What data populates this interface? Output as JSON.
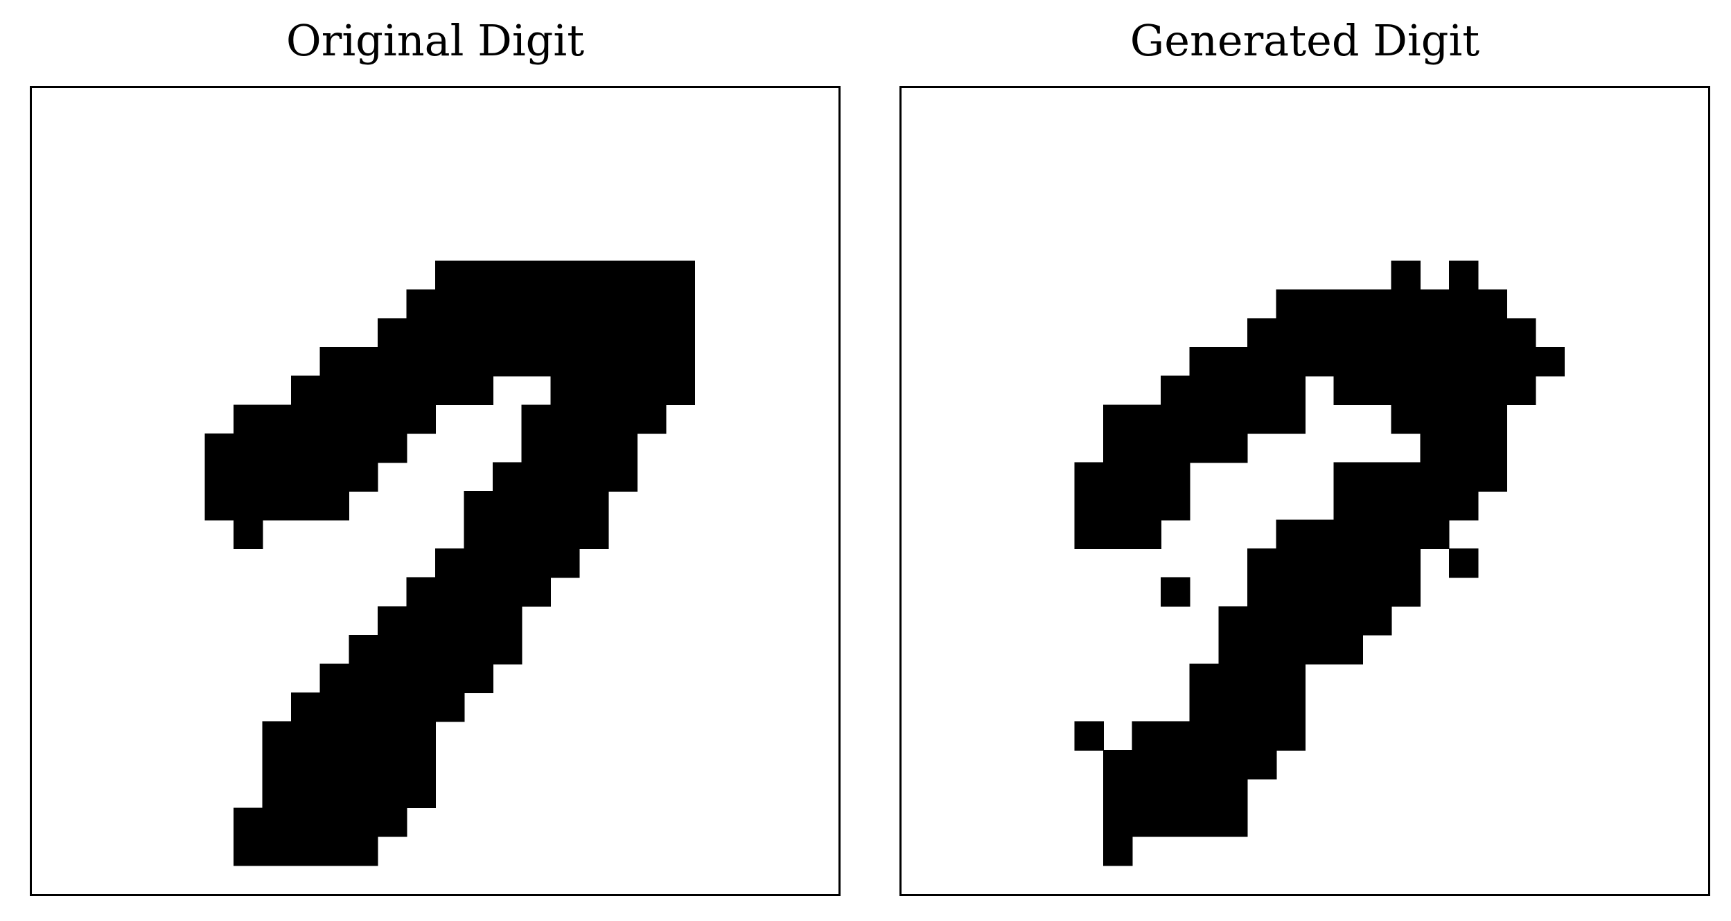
{
  "panels": [
    {
      "title": "Original Digit",
      "grid_size": 28,
      "fill_color": "#000000",
      "pixels": [
        [
          6,
          14
        ],
        [
          6,
          15
        ],
        [
          6,
          16
        ],
        [
          6,
          17
        ],
        [
          6,
          18
        ],
        [
          6,
          19
        ],
        [
          6,
          20
        ],
        [
          6,
          21
        ],
        [
          6,
          22
        ],
        [
          7,
          13
        ],
        [
          7,
          14
        ],
        [
          7,
          15
        ],
        [
          7,
          16
        ],
        [
          7,
          17
        ],
        [
          7,
          18
        ],
        [
          7,
          19
        ],
        [
          7,
          20
        ],
        [
          7,
          21
        ],
        [
          7,
          22
        ],
        [
          8,
          12
        ],
        [
          8,
          13
        ],
        [
          8,
          14
        ],
        [
          8,
          15
        ],
        [
          8,
          16
        ],
        [
          8,
          17
        ],
        [
          8,
          18
        ],
        [
          8,
          19
        ],
        [
          8,
          20
        ],
        [
          8,
          21
        ],
        [
          8,
          22
        ],
        [
          9,
          10
        ],
        [
          9,
          11
        ],
        [
          9,
          12
        ],
        [
          9,
          13
        ],
        [
          9,
          14
        ],
        [
          9,
          15
        ],
        [
          9,
          16
        ],
        [
          9,
          17
        ],
        [
          9,
          18
        ],
        [
          9,
          19
        ],
        [
          9,
          20
        ],
        [
          9,
          21
        ],
        [
          9,
          22
        ],
        [
          10,
          9
        ],
        [
          10,
          10
        ],
        [
          10,
          11
        ],
        [
          10,
          12
        ],
        [
          10,
          13
        ],
        [
          10,
          14
        ],
        [
          10,
          15
        ],
        [
          10,
          18
        ],
        [
          10,
          19
        ],
        [
          10,
          20
        ],
        [
          10,
          21
        ],
        [
          10,
          22
        ],
        [
          11,
          7
        ],
        [
          11,
          8
        ],
        [
          11,
          9
        ],
        [
          11,
          10
        ],
        [
          11,
          11
        ],
        [
          11,
          12
        ],
        [
          11,
          13
        ],
        [
          11,
          17
        ],
        [
          11,
          18
        ],
        [
          11,
          19
        ],
        [
          11,
          20
        ],
        [
          11,
          21
        ],
        [
          12,
          6
        ],
        [
          12,
          7
        ],
        [
          12,
          8
        ],
        [
          12,
          9
        ],
        [
          12,
          10
        ],
        [
          12,
          11
        ],
        [
          12,
          12
        ],
        [
          12,
          17
        ],
        [
          12,
          18
        ],
        [
          12,
          19
        ],
        [
          12,
          20
        ],
        [
          13,
          6
        ],
        [
          13,
          7
        ],
        [
          13,
          8
        ],
        [
          13,
          9
        ],
        [
          13,
          10
        ],
        [
          13,
          11
        ],
        [
          13,
          16
        ],
        [
          13,
          17
        ],
        [
          13,
          18
        ],
        [
          13,
          19
        ],
        [
          13,
          20
        ],
        [
          14,
          6
        ],
        [
          14,
          7
        ],
        [
          14,
          8
        ],
        [
          14,
          9
        ],
        [
          14,
          10
        ],
        [
          14,
          15
        ],
        [
          14,
          16
        ],
        [
          14,
          17
        ],
        [
          14,
          18
        ],
        [
          14,
          19
        ],
        [
          15,
          7
        ],
        [
          15,
          15
        ],
        [
          15,
          16
        ],
        [
          15,
          17
        ],
        [
          15,
          18
        ],
        [
          15,
          19
        ],
        [
          16,
          14
        ],
        [
          16,
          15
        ],
        [
          16,
          16
        ],
        [
          16,
          17
        ],
        [
          16,
          18
        ],
        [
          17,
          13
        ],
        [
          17,
          14
        ],
        [
          17,
          15
        ],
        [
          17,
          16
        ],
        [
          17,
          17
        ],
        [
          18,
          12
        ],
        [
          18,
          13
        ],
        [
          18,
          14
        ],
        [
          18,
          15
        ],
        [
          18,
          16
        ],
        [
          19,
          11
        ],
        [
          19,
          12
        ],
        [
          19,
          13
        ],
        [
          19,
          14
        ],
        [
          19,
          15
        ],
        [
          19,
          16
        ],
        [
          20,
          10
        ],
        [
          20,
          11
        ],
        [
          20,
          12
        ],
        [
          20,
          13
        ],
        [
          20,
          14
        ],
        [
          20,
          15
        ],
        [
          21,
          9
        ],
        [
          21,
          10
        ],
        [
          21,
          11
        ],
        [
          21,
          12
        ],
        [
          21,
          13
        ],
        [
          21,
          14
        ],
        [
          22,
          8
        ],
        [
          22,
          9
        ],
        [
          22,
          10
        ],
        [
          22,
          11
        ],
        [
          22,
          12
        ],
        [
          22,
          13
        ],
        [
          23,
          8
        ],
        [
          23,
          9
        ],
        [
          23,
          10
        ],
        [
          23,
          11
        ],
        [
          23,
          12
        ],
        [
          23,
          13
        ],
        [
          24,
          8
        ],
        [
          24,
          9
        ],
        [
          24,
          10
        ],
        [
          24,
          11
        ],
        [
          24,
          12
        ],
        [
          24,
          13
        ],
        [
          25,
          7
        ],
        [
          25,
          8
        ],
        [
          25,
          9
        ],
        [
          25,
          10
        ],
        [
          25,
          11
        ],
        [
          25,
          12
        ],
        [
          26,
          7
        ],
        [
          26,
          8
        ],
        [
          26,
          9
        ],
        [
          26,
          10
        ],
        [
          26,
          11
        ]
      ]
    },
    {
      "title": "Generated Digit",
      "grid_size": 28,
      "fill_color": "#000000",
      "pixels": [
        [
          6,
          17
        ],
        [
          6,
          19
        ],
        [
          7,
          13
        ],
        [
          7,
          14
        ],
        [
          7,
          15
        ],
        [
          7,
          16
        ],
        [
          7,
          17
        ],
        [
          7,
          18
        ],
        [
          7,
          19
        ],
        [
          7,
          20
        ],
        [
          8,
          12
        ],
        [
          8,
          13
        ],
        [
          8,
          14
        ],
        [
          8,
          15
        ],
        [
          8,
          16
        ],
        [
          8,
          17
        ],
        [
          8,
          18
        ],
        [
          8,
          19
        ],
        [
          8,
          20
        ],
        [
          8,
          21
        ],
        [
          9,
          10
        ],
        [
          9,
          11
        ],
        [
          9,
          12
        ],
        [
          9,
          13
        ],
        [
          9,
          14
        ],
        [
          9,
          15
        ],
        [
          9,
          16
        ],
        [
          9,
          17
        ],
        [
          9,
          18
        ],
        [
          9,
          19
        ],
        [
          9,
          20
        ],
        [
          9,
          21
        ],
        [
          9,
          22
        ],
        [
          10,
          9
        ],
        [
          10,
          10
        ],
        [
          10,
          11
        ],
        [
          10,
          12
        ],
        [
          10,
          13
        ],
        [
          10,
          15
        ],
        [
          10,
          16
        ],
        [
          10,
          17
        ],
        [
          10,
          18
        ],
        [
          10,
          19
        ],
        [
          10,
          20
        ],
        [
          10,
          21
        ],
        [
          11,
          7
        ],
        [
          11,
          8
        ],
        [
          11,
          9
        ],
        [
          11,
          10
        ],
        [
          11,
          11
        ],
        [
          11,
          12
        ],
        [
          11,
          13
        ],
        [
          11,
          17
        ],
        [
          11,
          18
        ],
        [
          11,
          19
        ],
        [
          11,
          20
        ],
        [
          12,
          7
        ],
        [
          12,
          8
        ],
        [
          12,
          9
        ],
        [
          12,
          10
        ],
        [
          12,
          11
        ],
        [
          12,
          18
        ],
        [
          12,
          19
        ],
        [
          12,
          20
        ],
        [
          13,
          6
        ],
        [
          13,
          7
        ],
        [
          13,
          8
        ],
        [
          13,
          9
        ],
        [
          13,
          15
        ],
        [
          13,
          16
        ],
        [
          13,
          17
        ],
        [
          13,
          18
        ],
        [
          13,
          19
        ],
        [
          13,
          20
        ],
        [
          14,
          6
        ],
        [
          14,
          7
        ],
        [
          14,
          8
        ],
        [
          14,
          9
        ],
        [
          14,
          15
        ],
        [
          14,
          16
        ],
        [
          14,
          17
        ],
        [
          14,
          18
        ],
        [
          14,
          19
        ],
        [
          15,
          6
        ],
        [
          15,
          7
        ],
        [
          15,
          8
        ],
        [
          15,
          13
        ],
        [
          15,
          14
        ],
        [
          15,
          15
        ],
        [
          15,
          16
        ],
        [
          15,
          17
        ],
        [
          15,
          18
        ],
        [
          16,
          12
        ],
        [
          16,
          13
        ],
        [
          16,
          14
        ],
        [
          16,
          15
        ],
        [
          16,
          16
        ],
        [
          16,
          17
        ],
        [
          16,
          19
        ],
        [
          17,
          9
        ],
        [
          17,
          12
        ],
        [
          17,
          13
        ],
        [
          17,
          14
        ],
        [
          17,
          15
        ],
        [
          17,
          16
        ],
        [
          17,
          17
        ],
        [
          18,
          11
        ],
        [
          18,
          12
        ],
        [
          18,
          13
        ],
        [
          18,
          14
        ],
        [
          18,
          15
        ],
        [
          18,
          16
        ],
        [
          19,
          11
        ],
        [
          19,
          12
        ],
        [
          19,
          13
        ],
        [
          19,
          14
        ],
        [
          19,
          15
        ],
        [
          20,
          10
        ],
        [
          20,
          11
        ],
        [
          20,
          12
        ],
        [
          20,
          13
        ],
        [
          21,
          10
        ],
        [
          21,
          11
        ],
        [
          21,
          12
        ],
        [
          21,
          13
        ],
        [
          22,
          6
        ],
        [
          22,
          8
        ],
        [
          22,
          9
        ],
        [
          22,
          10
        ],
        [
          22,
          11
        ],
        [
          22,
          12
        ],
        [
          22,
          13
        ],
        [
          23,
          7
        ],
        [
          23,
          8
        ],
        [
          23,
          9
        ],
        [
          23,
          10
        ],
        [
          23,
          11
        ],
        [
          23,
          12
        ],
        [
          24,
          7
        ],
        [
          24,
          8
        ],
        [
          24,
          9
        ],
        [
          24,
          10
        ],
        [
          24,
          11
        ],
        [
          25,
          7
        ],
        [
          25,
          8
        ],
        [
          25,
          9
        ],
        [
          25,
          10
        ],
        [
          25,
          11
        ],
        [
          26,
          7
        ]
      ]
    }
  ]
}
